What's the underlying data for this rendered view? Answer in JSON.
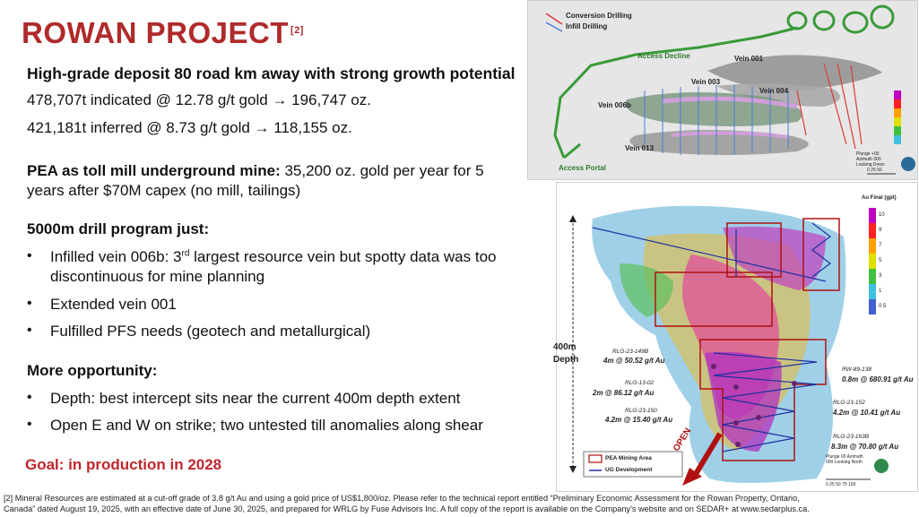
{
  "title": "ROWAN PROJECT",
  "title_ref": "[2]",
  "headline": "High-grade deposit 80 road km away with strong growth potential",
  "resources": [
    "478,707t indicated @ 12.78 g/t gold → 196,747 oz.",
    "421,181t inferred @ 8.73 g/t gold → 118,155 oz."
  ],
  "pea": {
    "bold": "PEA as toll mill underground mine:",
    "text": " 35,200 oz. gold per year for 5",
    "line2": "years after $70M capex (no mill, tailings)"
  },
  "drill": {
    "heading": "5000m drill program just:",
    "b1_pre": "Infilled vein 006b: 3",
    "b1_sup": "rd",
    "b1_post": " largest resource vein but spotty data was too",
    "b1_line2": "discontinuous for mine planning",
    "b2": "Extended vein 001",
    "b3": "Fulfilled PFS needs (geotech and metallurgical)"
  },
  "opportunity": {
    "heading": "More opportunity:",
    "b1": "Depth: best intercept sits near the current 400m depth extent",
    "b2": "Open E and W on strike; two untested till anomalies along shear"
  },
  "goal": "Goal: in production in 2028",
  "bullet_char": "•",
  "footnote_line1": "[2] Mineral Resources are estimated at a cut-off grade of 3.8 g/t Au and using a gold price of US$1,800/oz. Please refer to the technical report entitled “Preliminary Economic Assessment for the Rowan Property, Ontario,",
  "footnote_line2": "Canada” dated August 19, 2025, with an effective date of June 30, 2025, and prepared for WRLG by Fuse Advisors Inc. A full copy of the report is available on the Company’s website and on SEDAR+ at www.sedarplus.ca.",
  "figure_top": {
    "legend_conversion": "Conversion Drilling",
    "legend_infill": "Infill Drilling",
    "access_decline": "Access Decline",
    "access_portal": "Access Portal",
    "vein_001": "Vein 001",
    "vein_003": "Vein 003",
    "vein_004": "Vein 004",
    "vein_006b": "Vein 006b",
    "vein_013": "Vein 013",
    "compass": "Plunge +00 Azimuth 000 Looking Down",
    "scale": "0   25   50",
    "colors": {
      "conversion": "#d93a3a",
      "infill": "#4a7fd6",
      "decline": "#3a9a3a"
    }
  },
  "figure_bottom": {
    "legend_title": "Au Final (gpt)",
    "legend_values": [
      "10",
      "9",
      "7",
      "5",
      "3",
      "1",
      "0.5"
    ],
    "depth_label_1": "400m",
    "depth_label_2": "Depth",
    "intercepts": [
      {
        "hole": "RLG-23-149B",
        "value": "4m @ 50.52 g/t Au"
      },
      {
        "hole": "RLG-13-02",
        "value": "2m @ 86.12 g/t Au"
      },
      {
        "hole": "RLG-23-150",
        "value": "4.2m @ 15.40 g/t Au"
      },
      {
        "hole": "RW-89-138",
        "value": "0.8m @ 680.91 g/t Au"
      },
      {
        "hole": "RLG-23-152",
        "value": "4.2m @ 10.41 g/t Au"
      },
      {
        "hole": "RLG-23-163B",
        "value": "8.3m @ 70.80 g/t Au"
      }
    ],
    "open_label": "OPEN",
    "legend_pea": "PEA Mining Area",
    "legend_ug": "UG Development",
    "compass": "Plunge 00 Azimuth 000 Looking North",
    "scale": "0   25   50   75   100"
  }
}
